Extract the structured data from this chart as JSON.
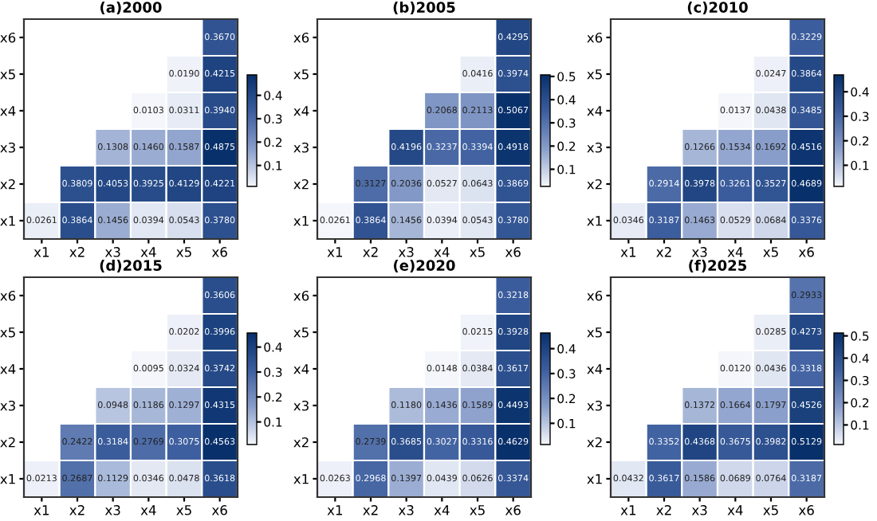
{
  "chart_data": [
    {
      "type": "heatmap",
      "title": "(a)2000",
      "categories": [
        "x1",
        "x2",
        "x3",
        "x4",
        "x5",
        "x6"
      ],
      "y_categories": [
        "x6",
        "x5",
        "x4",
        "x3",
        "x2",
        "x1"
      ],
      "clim": [
        0.0103,
        0.4875
      ],
      "cticks": [
        0.1,
        0.2,
        0.3,
        0.4
      ],
      "cells": [
        [
          null,
          null,
          null,
          null,
          null,
          0.367
        ],
        [
          null,
          null,
          null,
          null,
          0.019,
          0.4215
        ],
        [
          null,
          null,
          null,
          0.0103,
          0.0311,
          0.394
        ],
        [
          null,
          null,
          0.1308,
          0.146,
          0.1587,
          0.4875
        ],
        [
          null,
          0.3809,
          0.4053,
          0.3925,
          0.4129,
          0.4221
        ],
        [
          0.0261,
          0.3864,
          0.1456,
          0.0394,
          0.0543,
          0.378
        ]
      ],
      "cell_labels": [
        [
          null,
          null,
          null,
          null,
          null,
          "0.3670"
        ],
        [
          null,
          null,
          null,
          null,
          "0.0190",
          "0.4215"
        ],
        [
          null,
          null,
          null,
          "0.0103",
          "0.0311",
          "0.3940"
        ],
        [
          null,
          null,
          "0.1308",
          "0.1460",
          "0.1587",
          "0.4875"
        ],
        [
          null,
          "0.3809",
          "0.4053",
          "0.3925",
          "0.4129",
          "0.4221"
        ],
        [
          "0.0261",
          "0.3864",
          "0.1456",
          "0.0394",
          "0.0543",
          "0.3780"
        ]
      ]
    },
    {
      "type": "heatmap",
      "title": "(b)2005",
      "categories": [
        "x1",
        "x2",
        "x3",
        "x4",
        "x5",
        "x6"
      ],
      "y_categories": [
        "x6",
        "x5",
        "x4",
        "x3",
        "x2",
        "x1"
      ],
      "clim": [
        0.0261,
        0.5067
      ],
      "cticks": [
        0.1,
        0.2,
        0.3,
        0.4,
        0.5
      ],
      "cells": [
        [
          null,
          null,
          null,
          null,
          null,
          0.4295
        ],
        [
          null,
          null,
          null,
          null,
          0.0416,
          0.3974
        ],
        [
          null,
          null,
          null,
          0.2068,
          0.2113,
          0.5067
        ],
        [
          null,
          null,
          0.4196,
          0.3237,
          0.3394,
          0.4918
        ],
        [
          null,
          0.3127,
          0.2036,
          0.0527,
          0.0643,
          0.3869
        ],
        [
          0.0261,
          0.3864,
          0.1456,
          0.0394,
          0.0543,
          0.378
        ]
      ],
      "cell_labels": [
        [
          null,
          null,
          null,
          null,
          null,
          "0.4295"
        ],
        [
          null,
          null,
          null,
          null,
          "0.0416",
          "0.3974"
        ],
        [
          null,
          null,
          null,
          "0.2068",
          "0.2113",
          "0.5067"
        ],
        [
          null,
          null,
          "0.4196",
          "0.3237",
          "0.3394",
          "0.4918"
        ],
        [
          null,
          "0.3127",
          "0.2036",
          "0.0527",
          "0.0643",
          "0.3869"
        ],
        [
          "0.0261",
          "0.3864",
          "0.1456",
          "0.0394",
          "0.0543",
          "0.3780"
        ]
      ]
    },
    {
      "type": "heatmap",
      "title": "(c)2010",
      "categories": [
        "x1",
        "x2",
        "x3",
        "x4",
        "x5",
        "x6"
      ],
      "y_categories": [
        "x6",
        "x5",
        "x4",
        "x3",
        "x2",
        "x1"
      ],
      "clim": [
        0.0137,
        0.4689
      ],
      "cticks": [
        0.1,
        0.2,
        0.3,
        0.4
      ],
      "cells": [
        [
          null,
          null,
          null,
          null,
          null,
          0.3229
        ],
        [
          null,
          null,
          null,
          null,
          0.0247,
          0.3864
        ],
        [
          null,
          null,
          null,
          0.0137,
          0.0438,
          0.3485
        ],
        [
          null,
          null,
          0.1266,
          0.1534,
          0.1692,
          0.4516
        ],
        [
          null,
          0.2914,
          0.3978,
          0.3261,
          0.3527,
          0.4689
        ],
        [
          0.0346,
          0.3187,
          0.1463,
          0.0529,
          0.0684,
          0.3376
        ]
      ],
      "cell_labels": [
        [
          null,
          null,
          null,
          null,
          null,
          "0.3229"
        ],
        [
          null,
          null,
          null,
          null,
          "0.0247",
          "0.3864"
        ],
        [
          null,
          null,
          null,
          "0.0137",
          "0.0438",
          "0.3485"
        ],
        [
          null,
          null,
          "0.1266",
          "0.1534",
          "0.1692",
          "0.4516"
        ],
        [
          null,
          "0.2914",
          "0.3978",
          "0.3261",
          "0.3527",
          "0.4689"
        ],
        [
          "0.0346",
          "0.3187",
          "0.1463",
          "0.0529",
          "0.0684",
          "0.3376"
        ]
      ]
    },
    {
      "type": "heatmap",
      "title": "(d)2015",
      "categories": [
        "x1",
        "x2",
        "x3",
        "x4",
        "x5",
        "x6"
      ],
      "y_categories": [
        "x6",
        "x5",
        "x4",
        "x3",
        "x2",
        "x1"
      ],
      "clim": [
        0.0095,
        0.4563
      ],
      "cticks": [
        0.1,
        0.2,
        0.3,
        0.4
      ],
      "cells": [
        [
          null,
          null,
          null,
          null,
          null,
          0.3606
        ],
        [
          null,
          null,
          null,
          null,
          0.0202,
          0.3996
        ],
        [
          null,
          null,
          null,
          0.0095,
          0.0324,
          0.3742
        ],
        [
          null,
          null,
          0.0948,
          0.1186,
          0.1297,
          0.4315
        ],
        [
          null,
          0.2422,
          0.3184,
          0.2769,
          0.3075,
          0.4563
        ],
        [
          0.0213,
          0.2687,
          0.1129,
          0.0346,
          0.0478,
          0.3618
        ]
      ],
      "cell_labels": [
        [
          null,
          null,
          null,
          null,
          null,
          "0.3606"
        ],
        [
          null,
          null,
          null,
          null,
          "0.0202",
          "0.3996"
        ],
        [
          null,
          null,
          null,
          "0.0095",
          "0.0324",
          "0.3742"
        ],
        [
          null,
          null,
          "0.0948",
          "0.1186",
          "0.1297",
          "0.4315"
        ],
        [
          null,
          "0.2422",
          "0.3184",
          "0.2769",
          "0.3075",
          "0.4563"
        ],
        [
          "0.0213",
          "0.2687",
          "0.1129",
          "0.0346",
          "0.0478",
          "0.3618"
        ]
      ]
    },
    {
      "type": "heatmap",
      "title": "(e)2020",
      "categories": [
        "x1",
        "x2",
        "x3",
        "x4",
        "x5",
        "x6"
      ],
      "y_categories": [
        "x6",
        "x5",
        "x4",
        "x3",
        "x2",
        "x1"
      ],
      "clim": [
        0.0148,
        0.4629
      ],
      "cticks": [
        0.1,
        0.2,
        0.3,
        0.4
      ],
      "cells": [
        [
          null,
          null,
          null,
          null,
          null,
          0.3218
        ],
        [
          null,
          null,
          null,
          null,
          0.0215,
          0.3928
        ],
        [
          null,
          null,
          null,
          0.0148,
          0.0384,
          0.3617
        ],
        [
          null,
          null,
          0.118,
          0.1436,
          0.1589,
          0.4493
        ],
        [
          null,
          0.2739,
          0.3685,
          0.3027,
          0.3316,
          0.4629
        ],
        [
          0.0263,
          0.2968,
          0.1397,
          0.0439,
          0.0626,
          0.3374
        ]
      ],
      "cell_labels": [
        [
          null,
          null,
          null,
          null,
          null,
          "0.3218"
        ],
        [
          null,
          null,
          null,
          null,
          "0.0215",
          "0.3928"
        ],
        [
          null,
          null,
          null,
          "0.0148",
          "0.0384",
          "0.3617"
        ],
        [
          null,
          null,
          "0.1180",
          "0.1436",
          "0.1589",
          "0.4493"
        ],
        [
          null,
          "0.2739",
          "0.3685",
          "0.3027",
          "0.3316",
          "0.4629"
        ],
        [
          "0.0263",
          "0.2968",
          "0.1397",
          "0.0439",
          "0.0626",
          "0.3374"
        ]
      ]
    },
    {
      "type": "heatmap",
      "title": "(f)2025",
      "categories": [
        "x1",
        "x2",
        "x3",
        "x4",
        "x5",
        "x6"
      ],
      "y_categories": [
        "x6",
        "x5",
        "x4",
        "x3",
        "x2",
        "x1"
      ],
      "clim": [
        0.012,
        0.5129
      ],
      "cticks": [
        0.1,
        0.2,
        0.3,
        0.4,
        0.5
      ],
      "cells": [
        [
          null,
          null,
          null,
          null,
          null,
          0.2933
        ],
        [
          null,
          null,
          null,
          null,
          0.0285,
          0.4273
        ],
        [
          null,
          null,
          null,
          0.012,
          0.0436,
          0.3318
        ],
        [
          null,
          null,
          0.1372,
          0.1664,
          0.1797,
          0.4526
        ],
        [
          null,
          0.3352,
          0.4368,
          0.3675,
          0.3982,
          0.5129
        ],
        [
          0.0432,
          0.3617,
          0.1586,
          0.0689,
          0.0764,
          0.3187
        ]
      ],
      "cell_labels": [
        [
          null,
          null,
          null,
          null,
          null,
          "0.2933"
        ],
        [
          null,
          null,
          null,
          null,
          "0.0285",
          "0.4273"
        ],
        [
          null,
          null,
          null,
          "0.0120",
          "0.0436",
          "0.3318"
        ],
        [
          null,
          null,
          "0.1372",
          "0.1664",
          "0.1797",
          "0.4526"
        ],
        [
          null,
          "0.3352",
          "0.4368",
          "0.3675",
          "0.3982",
          "0.5129"
        ],
        [
          "0.0432",
          "0.3617",
          "0.1586",
          "0.0689",
          "0.0764",
          "0.3187"
        ]
      ]
    }
  ]
}
